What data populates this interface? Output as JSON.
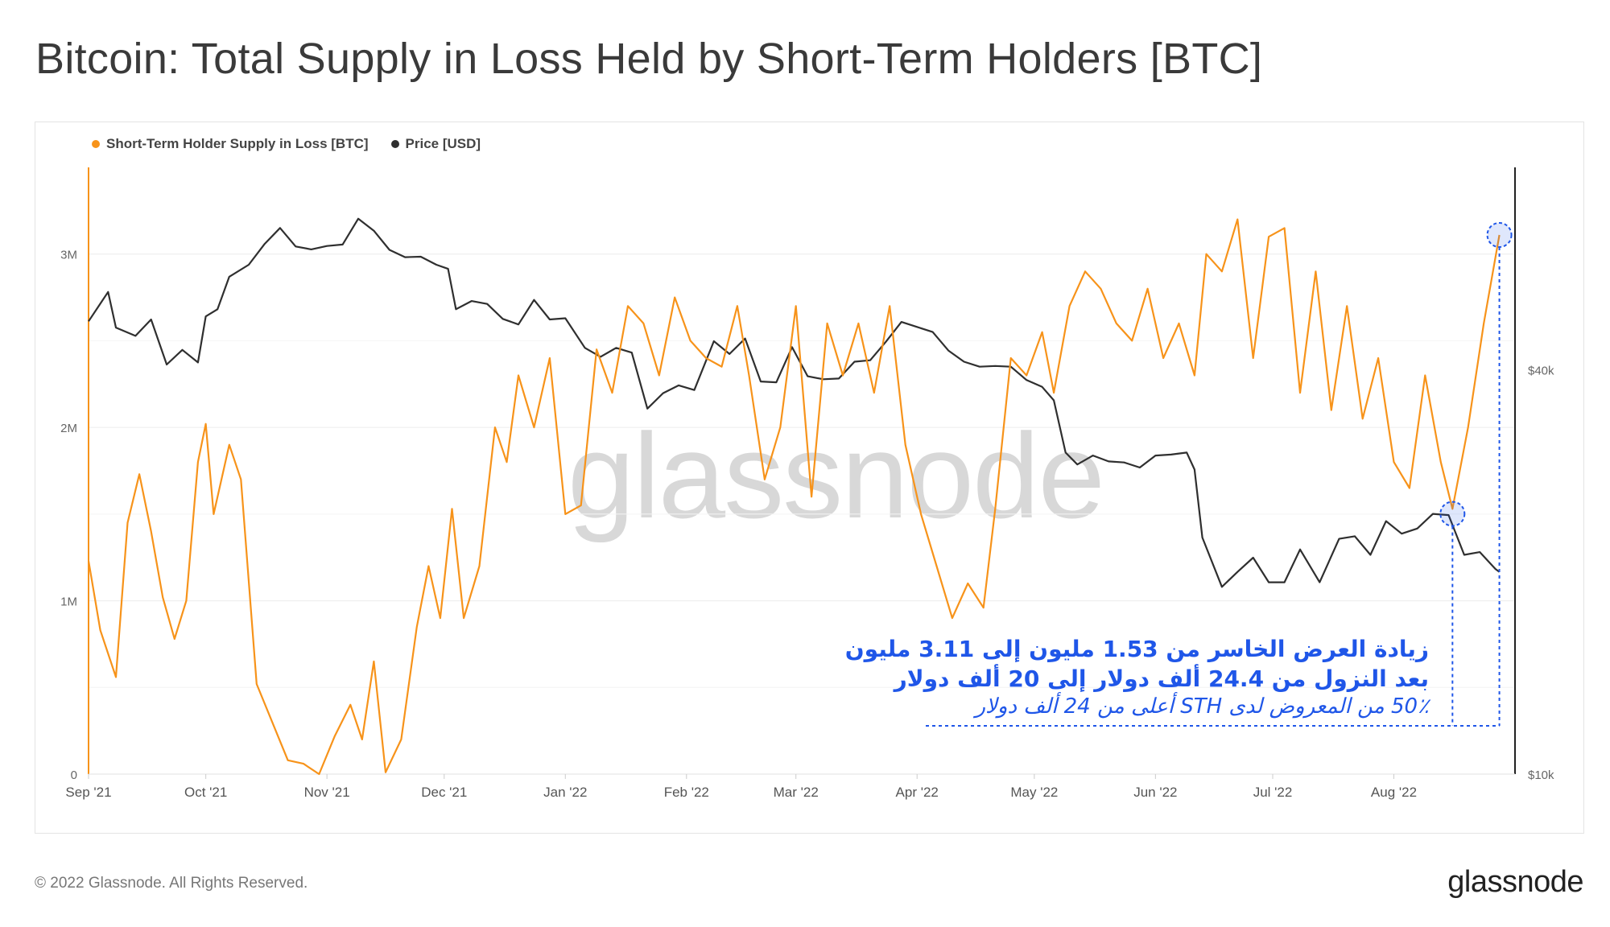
{
  "title": "Bitcoin: Total Supply in Loss Held by Short-Term Holders [BTC]",
  "watermark": "glassnode",
  "footer": {
    "copyright": "© 2022 Glassnode. All Rights Reserved.",
    "logo": "glassnode"
  },
  "annotation": {
    "line1": "زيادة العرض الخاسر من 1.53 مليون إلى 3.11 مليون",
    "line2": "بعد النزول من 24.4 ألف دولار إلى 20 ألف دولار",
    "line3": "50٪ من المعروض لدى STH أعلى من 24 ألف دولار"
  },
  "colors": {
    "supply": "#f7931a",
    "price": "#2f2f2f",
    "annotation": "#1f56e8",
    "grid": "#ececec"
  },
  "chart_data": {
    "type": "line",
    "title": "Bitcoin: Total Supply in Loss Held by Short-Term Holders [BTC]",
    "legend_placement": "top-left",
    "grid": true,
    "x_ticks": [
      "Sep '21",
      "Oct '21",
      "Nov '21",
      "Dec '21",
      "Jan '22",
      "Feb '22",
      "Mar '22",
      "Apr '22",
      "May '22",
      "Jun '22",
      "Jul '22",
      "Aug '22"
    ],
    "y_left": {
      "ticks": [
        "0",
        "1M",
        "2M",
        "3M"
      ],
      "range": [
        0,
        3500000
      ]
    },
    "y_right": {
      "ticks": [
        "$10k",
        "$40k"
      ],
      "scale": "log",
      "range": [
        10000,
        80000
      ]
    },
    "series": [
      {
        "name": "Short-Term Holder Supply in Loss [BTC]",
        "axis": "left",
        "points": [
          [
            "2021-09-01",
            1230000
          ],
          [
            "2021-09-04",
            830000
          ],
          [
            "2021-09-08",
            560000
          ],
          [
            "2021-09-11",
            1450000
          ],
          [
            "2021-09-14",
            1730000
          ],
          [
            "2021-09-17",
            1400000
          ],
          [
            "2021-09-20",
            1020000
          ],
          [
            "2021-09-23",
            780000
          ],
          [
            "2021-09-26",
            1000000
          ],
          [
            "2021-09-29",
            1800000
          ],
          [
            "2021-10-01",
            2020000
          ],
          [
            "2021-10-03",
            1500000
          ],
          [
            "2021-10-07",
            1900000
          ],
          [
            "2021-10-10",
            1700000
          ],
          [
            "2021-10-14",
            520000
          ],
          [
            "2021-10-18",
            300000
          ],
          [
            "2021-10-22",
            80000
          ],
          [
            "2021-10-26",
            60000
          ],
          [
            "2021-10-30",
            0
          ],
          [
            "2021-11-03",
            220000
          ],
          [
            "2021-11-07",
            400000
          ],
          [
            "2021-11-10",
            200000
          ],
          [
            "2021-11-13",
            650000
          ],
          [
            "2021-11-16",
            10000
          ],
          [
            "2021-11-20",
            200000
          ],
          [
            "2021-11-24",
            850000
          ],
          [
            "2021-11-27",
            1200000
          ],
          [
            "2021-11-30",
            900000
          ],
          [
            "2021-12-03",
            1530000
          ],
          [
            "2021-12-06",
            900000
          ],
          [
            "2021-12-10",
            1200000
          ],
          [
            "2021-12-14",
            2000000
          ],
          [
            "2021-12-17",
            1800000
          ],
          [
            "2021-12-20",
            2300000
          ],
          [
            "2021-12-24",
            2000000
          ],
          [
            "2021-12-28",
            2400000
          ],
          [
            "2022-01-01",
            1500000
          ],
          [
            "2022-01-05",
            1550000
          ],
          [
            "2022-01-09",
            2450000
          ],
          [
            "2022-01-13",
            2200000
          ],
          [
            "2022-01-17",
            2700000
          ],
          [
            "2022-01-21",
            2600000
          ],
          [
            "2022-01-25",
            2300000
          ],
          [
            "2022-01-29",
            2750000
          ],
          [
            "2022-02-02",
            2500000
          ],
          [
            "2022-02-06",
            2400000
          ],
          [
            "2022-02-10",
            2350000
          ],
          [
            "2022-02-14",
            2700000
          ],
          [
            "2022-02-17",
            2300000
          ],
          [
            "2022-02-21",
            1700000
          ],
          [
            "2022-02-25",
            2000000
          ],
          [
            "2022-03-01",
            2700000
          ],
          [
            "2022-03-05",
            1600000
          ],
          [
            "2022-03-09",
            2600000
          ],
          [
            "2022-03-13",
            2300000
          ],
          [
            "2022-03-17",
            2600000
          ],
          [
            "2022-03-21",
            2200000
          ],
          [
            "2022-03-25",
            2700000
          ],
          [
            "2022-03-29",
            1900000
          ],
          [
            "2022-04-02",
            1500000
          ],
          [
            "2022-04-06",
            1200000
          ],
          [
            "2022-04-10",
            900000
          ],
          [
            "2022-04-14",
            1100000
          ],
          [
            "2022-04-18",
            960000
          ],
          [
            "2022-04-21",
            1530000
          ],
          [
            "2022-04-25",
            2400000
          ],
          [
            "2022-04-29",
            2300000
          ],
          [
            "2022-05-03",
            2550000
          ],
          [
            "2022-05-06",
            2200000
          ],
          [
            "2022-05-10",
            2700000
          ],
          [
            "2022-05-14",
            2900000
          ],
          [
            "2022-05-18",
            2800000
          ],
          [
            "2022-05-22",
            2600000
          ],
          [
            "2022-05-26",
            2500000
          ],
          [
            "2022-05-30",
            2800000
          ],
          [
            "2022-06-03",
            2400000
          ],
          [
            "2022-06-07",
            2600000
          ],
          [
            "2022-06-11",
            2300000
          ],
          [
            "2022-06-14",
            3000000
          ],
          [
            "2022-06-18",
            2900000
          ],
          [
            "2022-06-22",
            3200000
          ],
          [
            "2022-06-26",
            2400000
          ],
          [
            "2022-06-30",
            3100000
          ],
          [
            "2022-07-04",
            3150000
          ],
          [
            "2022-07-08",
            2200000
          ],
          [
            "2022-07-12",
            2900000
          ],
          [
            "2022-07-16",
            2100000
          ],
          [
            "2022-07-20",
            2700000
          ],
          [
            "2022-07-24",
            2050000
          ],
          [
            "2022-07-28",
            2400000
          ],
          [
            "2022-08-01",
            1800000
          ],
          [
            "2022-08-05",
            1650000
          ],
          [
            "2022-08-09",
            2300000
          ],
          [
            "2022-08-13",
            1800000
          ],
          [
            "2022-08-16",
            1530000
          ],
          [
            "2022-08-20",
            2000000
          ],
          [
            "2022-08-24",
            2600000
          ],
          [
            "2022-08-28",
            3110000
          ]
        ]
      },
      {
        "name": "Price [USD]",
        "axis": "right",
        "points": [
          [
            "2021-09-01",
            47200
          ],
          [
            "2021-09-06",
            52200
          ],
          [
            "2021-09-08",
            46200
          ],
          [
            "2021-09-13",
            44900
          ],
          [
            "2021-09-17",
            47500
          ],
          [
            "2021-09-21",
            40700
          ],
          [
            "2021-09-25",
            42800
          ],
          [
            "2021-09-29",
            41000
          ],
          [
            "2021-10-01",
            48000
          ],
          [
            "2021-10-04",
            49200
          ],
          [
            "2021-10-07",
            55000
          ],
          [
            "2021-10-12",
            57300
          ],
          [
            "2021-10-16",
            61500
          ],
          [
            "2021-10-20",
            65000
          ],
          [
            "2021-10-24",
            61000
          ],
          [
            "2021-10-28",
            60400
          ],
          [
            "2021-11-01",
            61100
          ],
          [
            "2021-11-05",
            61400
          ],
          [
            "2021-11-09",
            67100
          ],
          [
            "2021-11-13",
            64400
          ],
          [
            "2021-11-17",
            60300
          ],
          [
            "2021-11-21",
            58800
          ],
          [
            "2021-11-25",
            58900
          ],
          [
            "2021-11-29",
            57300
          ],
          [
            "2021-12-02",
            56500
          ],
          [
            "2021-12-04",
            49200
          ],
          [
            "2021-12-08",
            50600
          ],
          [
            "2021-12-12",
            50100
          ],
          [
            "2021-12-16",
            47600
          ],
          [
            "2021-12-20",
            46700
          ],
          [
            "2021-12-24",
            50800
          ],
          [
            "2021-12-28",
            47500
          ],
          [
            "2022-01-01",
            47700
          ],
          [
            "2022-01-06",
            43100
          ],
          [
            "2022-01-10",
            41800
          ],
          [
            "2022-01-14",
            43100
          ],
          [
            "2022-01-18",
            42400
          ],
          [
            "2022-01-22",
            35000
          ],
          [
            "2022-01-26",
            36900
          ],
          [
            "2022-01-30",
            37900
          ],
          [
            "2022-02-03",
            37300
          ],
          [
            "2022-02-08",
            44100
          ],
          [
            "2022-02-12",
            42200
          ],
          [
            "2022-02-16",
            44500
          ],
          [
            "2022-02-20",
            38400
          ],
          [
            "2022-02-24",
            38300
          ],
          [
            "2022-02-28",
            43200
          ],
          [
            "2022-03-04",
            39100
          ],
          [
            "2022-03-08",
            38700
          ],
          [
            "2022-03-12",
            38800
          ],
          [
            "2022-03-16",
            41100
          ],
          [
            "2022-03-20",
            41300
          ],
          [
            "2022-03-24",
            44000
          ],
          [
            "2022-03-28",
            47100
          ],
          [
            "2022-04-01",
            46300
          ],
          [
            "2022-04-05",
            45500
          ],
          [
            "2022-04-09",
            42700
          ],
          [
            "2022-04-13",
            41100
          ],
          [
            "2022-04-17",
            40400
          ],
          [
            "2022-04-21",
            40500
          ],
          [
            "2022-04-25",
            40400
          ],
          [
            "2022-04-29",
            38600
          ],
          [
            "2022-05-03",
            37700
          ],
          [
            "2022-05-06",
            36000
          ],
          [
            "2022-05-09",
            30100
          ],
          [
            "2022-05-12",
            28900
          ],
          [
            "2022-05-16",
            29800
          ],
          [
            "2022-05-20",
            29200
          ],
          [
            "2022-05-24",
            29100
          ],
          [
            "2022-05-28",
            28600
          ],
          [
            "2022-06-01",
            29800
          ],
          [
            "2022-06-05",
            29900
          ],
          [
            "2022-06-09",
            30100
          ],
          [
            "2022-06-11",
            28400
          ],
          [
            "2022-06-13",
            22500
          ],
          [
            "2022-06-18",
            19000
          ],
          [
            "2022-06-22",
            20000
          ],
          [
            "2022-06-26",
            21000
          ],
          [
            "2022-06-30",
            19300
          ],
          [
            "2022-07-04",
            19300
          ],
          [
            "2022-07-08",
            21600
          ],
          [
            "2022-07-13",
            19300
          ],
          [
            "2022-07-18",
            22400
          ],
          [
            "2022-07-22",
            22600
          ],
          [
            "2022-07-26",
            21200
          ],
          [
            "2022-07-30",
            23800
          ],
          [
            "2022-08-03",
            22800
          ],
          [
            "2022-08-07",
            23200
          ],
          [
            "2022-08-11",
            24400
          ],
          [
            "2022-08-15",
            24300
          ],
          [
            "2022-08-19",
            21200
          ],
          [
            "2022-08-23",
            21400
          ],
          [
            "2022-08-27",
            20200
          ],
          [
            "2022-08-28",
            20000
          ]
        ]
      }
    ]
  }
}
